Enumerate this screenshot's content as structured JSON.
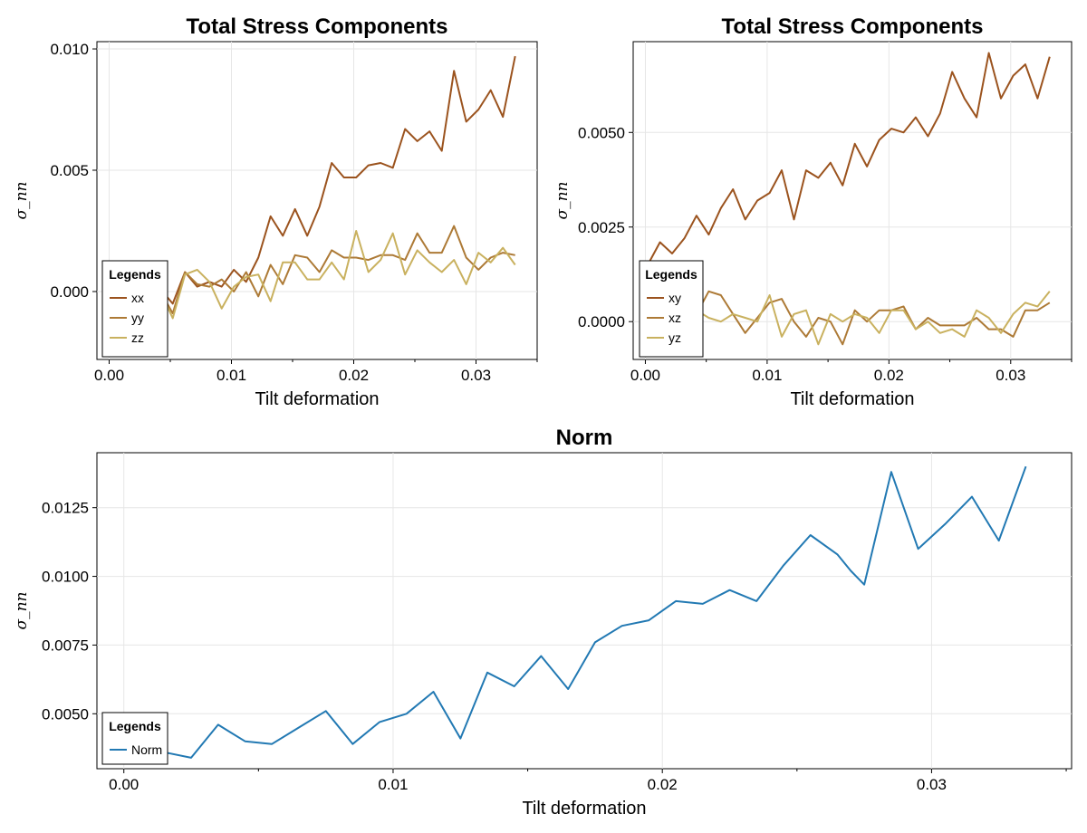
{
  "chart_data": [
    {
      "type": "line",
      "title": "Total Stress Components",
      "xlabel": "Tilt deformation",
      "ylabel": "σ_nn",
      "xlim": [
        -0.001,
        0.035
      ],
      "ylim": [
        -0.0028,
        0.0103
      ],
      "xticks": [
        0.0,
        0.01,
        0.02,
        0.03
      ],
      "xtick_labels": [
        "0.00",
        "0.01",
        "0.02",
        "0.03"
      ],
      "yticks": [
        0.0,
        0.005,
        0.01
      ],
      "ytick_labels": [
        "0.000",
        "0.005",
        "0.010"
      ],
      "grid": true,
      "legend": {
        "title": "Legends",
        "placement": "bottom-left"
      },
      "x": [
        0.0002,
        0.0012,
        0.0022,
        0.0032,
        0.0042,
        0.0052,
        0.0062,
        0.0072,
        0.0082,
        0.0092,
        0.0102,
        0.0112,
        0.0122,
        0.0132,
        0.0142,
        0.0152,
        0.0162,
        0.0172,
        0.0182,
        0.0192,
        0.0202,
        0.0212,
        0.0222,
        0.0232,
        0.0242,
        0.0252,
        0.0262,
        0.0272,
        0.0282,
        0.0292,
        0.0302,
        0.0312,
        0.0322,
        0.0332
      ],
      "series": [
        {
          "name": "xx",
          "color": "#9B531E",
          "values": [
            0.0,
            0.0002,
            0.0,
            -0.0003,
            0.0001,
            -0.0005,
            0.0008,
            0.0002,
            0.0004,
            0.0002,
            0.0009,
            0.0004,
            0.0014,
            0.0031,
            0.0023,
            0.0034,
            0.0023,
            0.0035,
            0.0053,
            0.0047,
            0.0047,
            0.0052,
            0.0053,
            0.0051,
            0.0067,
            0.0062,
            0.0066,
            0.0058,
            0.0091,
            0.007,
            0.0075,
            0.0083,
            0.0072,
            0.0097
          ]
        },
        {
          "name": "yy",
          "color": "#AD7A36",
          "values": [
            0.0002,
            -0.0002,
            -0.0003,
            0.0,
            0.0,
            -0.0009,
            0.0008,
            0.0003,
            0.0002,
            0.0005,
            0.0,
            0.0008,
            -0.0002,
            0.0011,
            0.0003,
            0.0015,
            0.0014,
            0.0008,
            0.0017,
            0.0014,
            0.0014,
            0.0013,
            0.0015,
            0.0015,
            0.0013,
            0.0024,
            0.0016,
            0.0016,
            0.0027,
            0.0014,
            0.0009,
            0.0014,
            0.0016,
            0.0015
          ]
        },
        {
          "name": "zz",
          "color": "#C9B15F",
          "values": [
            0.0001,
            0.0002,
            0.0001,
            -0.0001,
            0.0,
            -0.0011,
            0.0007,
            0.0009,
            0.0004,
            -0.0007,
            0.0002,
            0.0006,
            0.0007,
            -0.0004,
            0.0012,
            0.0012,
            0.0005,
            0.0005,
            0.0012,
            0.0005,
            0.0025,
            0.0008,
            0.0013,
            0.0024,
            0.0007,
            0.0017,
            0.0012,
            0.0008,
            0.0013,
            0.0003,
            0.0016,
            0.0012,
            0.0018,
            0.0011
          ]
        }
      ]
    },
    {
      "type": "line",
      "title": "Total Stress Components",
      "xlabel": "Tilt deformation",
      "ylabel": "σ_nn",
      "xlim": [
        -0.001,
        0.035
      ],
      "ylim": [
        -0.001,
        0.0074
      ],
      "xticks": [
        0.0,
        0.01,
        0.02,
        0.03
      ],
      "xtick_labels": [
        "0.00",
        "0.01",
        "0.02",
        "0.03"
      ],
      "yticks": [
        0.0,
        0.0025,
        0.005
      ],
      "ytick_labels": [
        "0.0000",
        "0.0025",
        "0.0050"
      ],
      "grid": true,
      "legend": {
        "title": "Legends",
        "placement": "bottom-left"
      },
      "x": [
        0.0002,
        0.0012,
        0.0022,
        0.0032,
        0.0042,
        0.0052,
        0.0062,
        0.0072,
        0.0082,
        0.0092,
        0.0102,
        0.0112,
        0.0122,
        0.0132,
        0.0142,
        0.0152,
        0.0162,
        0.0172,
        0.0182,
        0.0192,
        0.0202,
        0.0212,
        0.0222,
        0.0232,
        0.0242,
        0.0252,
        0.0262,
        0.0272,
        0.0282,
        0.0292,
        0.0302,
        0.0312,
        0.0322,
        0.0332
      ],
      "series": [
        {
          "name": "xy",
          "color": "#9B531E",
          "values": [
            0.0015,
            0.0021,
            0.0018,
            0.0022,
            0.0028,
            0.0023,
            0.003,
            0.0035,
            0.0027,
            0.0032,
            0.0034,
            0.004,
            0.0027,
            0.004,
            0.0038,
            0.0042,
            0.0036,
            0.0047,
            0.0041,
            0.0048,
            0.0051,
            0.005,
            0.0054,
            0.0049,
            0.0055,
            0.0066,
            0.0059,
            0.0054,
            0.0071,
            0.0059,
            0.0065,
            0.0068,
            0.0059,
            0.007
          ]
        },
        {
          "name": "xz",
          "color": "#AD7A36",
          "values": [
            0.0,
            0.0003,
            0.0001,
            0.0,
            0.0002,
            0.0008,
            0.0007,
            0.0002,
            -0.0003,
            0.0001,
            0.0005,
            0.0006,
            0.0,
            -0.0004,
            0.0001,
            0.0,
            -0.0006,
            0.0003,
            0.0,
            0.0003,
            0.0003,
            0.0004,
            -0.0002,
            0.0001,
            -0.0001,
            -0.0001,
            -0.0001,
            0.0001,
            -0.0002,
            -0.0002,
            -0.0004,
            0.0003,
            0.0003,
            0.0005
          ]
        },
        {
          "name": "yz",
          "color": "#C9B15F",
          "values": [
            0.0,
            0.0002,
            0.0003,
            0.0001,
            0.0003,
            0.0001,
            0.0,
            0.0002,
            0.0001,
            0.0,
            0.0007,
            -0.0004,
            0.0002,
            0.0003,
            -0.0006,
            0.0002,
            0.0,
            0.0002,
            0.0001,
            -0.0003,
            0.0003,
            0.0003,
            -0.0002,
            0.0,
            -0.0003,
            -0.0002,
            -0.0004,
            0.0003,
            0.0001,
            -0.0003,
            0.0002,
            0.0005,
            0.0004,
            0.0008
          ]
        }
      ]
    },
    {
      "type": "line",
      "title": "Norm",
      "xlabel": "Tilt deformation",
      "ylabel": "σ_nn",
      "xlim": [
        -0.001,
        0.0352
      ],
      "ylim": [
        0.003,
        0.0145
      ],
      "xticks": [
        0.0,
        0.01,
        0.02,
        0.03
      ],
      "xtick_labels": [
        "0.00",
        "0.01",
        "0.02",
        "0.03"
      ],
      "yticks": [
        0.005,
        0.0075,
        0.01,
        0.0125
      ],
      "ytick_labels": [
        "0.0050",
        "0.0075",
        "0.0100",
        "0.0125"
      ],
      "grid": true,
      "legend": {
        "title": "Legends",
        "placement": "bottom-left"
      },
      "x": [
        0.0005,
        0.0015,
        0.0025,
        0.0035,
        0.0045,
        0.0055,
        0.0065,
        0.0075,
        0.0085,
        0.0095,
        0.0105,
        0.0115,
        0.0125,
        0.0135,
        0.0145,
        0.0155,
        0.0165,
        0.0175,
        0.0185,
        0.0195,
        0.0205,
        0.0215,
        0.0225,
        0.0235,
        0.0245,
        0.0255,
        0.0265,
        0.027,
        0.0275,
        0.0285,
        0.0295,
        0.0305,
        0.0315,
        0.0325,
        0.0335
      ],
      "series": [
        {
          "name": "Norm",
          "color": "#2279B3",
          "values": [
            0.0038,
            0.0036,
            0.0034,
            0.0046,
            0.004,
            0.0039,
            0.0045,
            0.0051,
            0.0039,
            0.0047,
            0.005,
            0.0058,
            0.0041,
            0.0065,
            0.006,
            0.0071,
            0.0059,
            0.0076,
            0.0082,
            0.0084,
            0.0091,
            0.009,
            0.0095,
            0.0091,
            0.0104,
            0.0115,
            0.0108,
            0.0102,
            0.0097,
            0.0138,
            0.011,
            0.0119,
            0.0129,
            0.0113,
            0.014
          ]
        }
      ]
    }
  ]
}
